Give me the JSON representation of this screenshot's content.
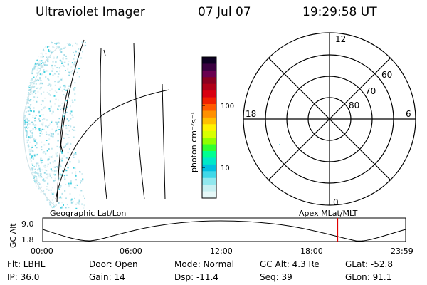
{
  "header": {
    "title": "Ultraviolet Imager",
    "date": "07 Jul 07",
    "time": "19:29:58 UT"
  },
  "colorbar": {
    "unit_label": "photon cm⁻²s⁻¹",
    "ticks": [
      "100",
      "10"
    ],
    "colors": [
      "#0d0022",
      "#3a0040",
      "#6a0050",
      "#8a0020",
      "#b00018",
      "#d80010",
      "#f02000",
      "#ff5a00",
      "#ff9000",
      "#ffc000",
      "#fff200",
      "#d8ff00",
      "#90ff00",
      "#30ff30",
      "#00ff90",
      "#00e8c8",
      "#00c0e0",
      "#40d8e8",
      "#90e8ee",
      "#c8f0f2",
      "#e6f8f8"
    ]
  },
  "polar_plot": {
    "mlt_labels": [
      "12",
      "18",
      "6",
      "0"
    ],
    "lat_labels": [
      "60",
      "70",
      "80"
    ]
  },
  "altitude_strip": {
    "title_left": "Geographic Lat/Lon",
    "title_right": "Apex MLat/MLT",
    "axis_label": "GC Alt",
    "y_ticks": [
      "9.0",
      "1.8"
    ],
    "x_ticks": [
      "00:00",
      "06:00",
      "12:00",
      "18:00",
      "23:59"
    ],
    "current_marker_color": "#e00000",
    "current_time_fraction": 0.8125
  },
  "status": {
    "row1": {
      "flt": "Flt: LBHL",
      "door": "Door: Open",
      "mode": "Mode: Normal",
      "gc_alt": "GC Alt: 4.3 Re",
      "glat": "GLat: -52.8"
    },
    "row2": {
      "ip": "IP: 36.0",
      "gain": "Gain: 14",
      "dsp": "Dsp: -11.4",
      "seq": "Seq: 39",
      "glon": "GLon: 91.1"
    }
  }
}
